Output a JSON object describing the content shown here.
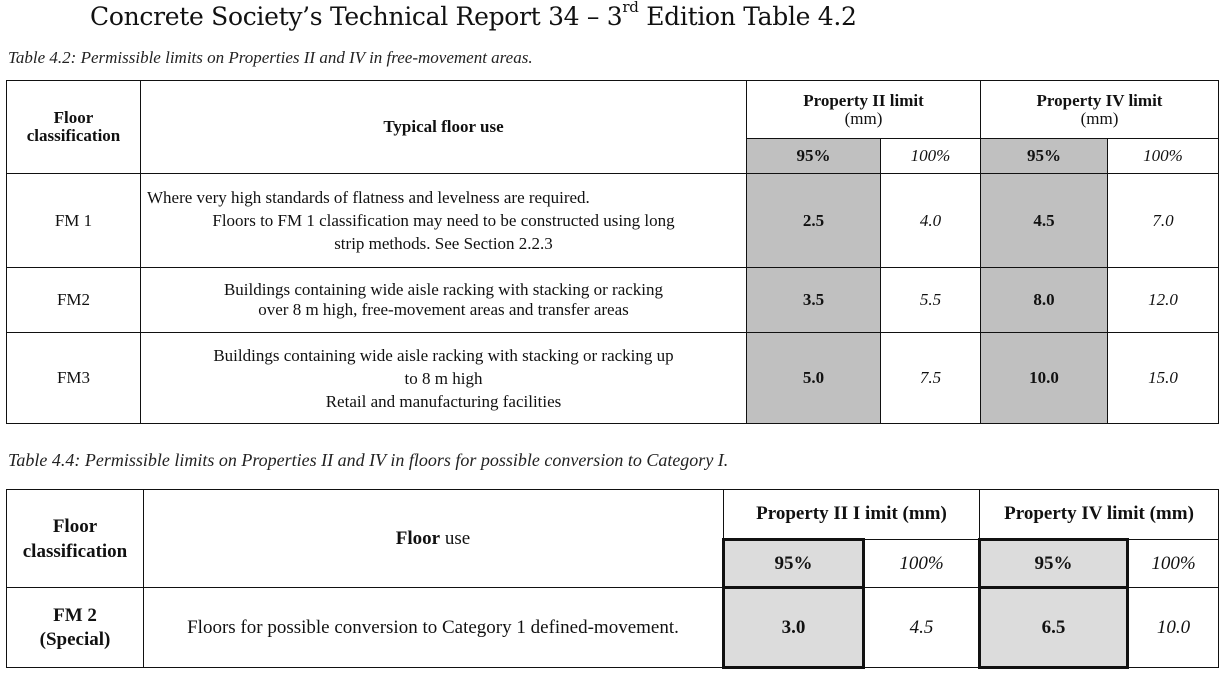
{
  "page_title": {
    "prefix": "Concrete Society’s Technical Report 34 – 3",
    "sup": "rd",
    "suffix": " Edition Table 4.2"
  },
  "table1": {
    "caption": "Table 4.2:  Permissible limits on Properties II and IV in free-movement areas.",
    "headers": {
      "floor_classification_1": "Floor",
      "floor_classification_2": "classification",
      "typical_floor_use": "Typical floor use",
      "prop2_line1": "Property II limit",
      "prop2_line2": "(mm)",
      "prop4_line1": "Property IV limit",
      "prop4_line2": "(mm)",
      "p95_a": "95%",
      "p100_a": "100%",
      "p95_b": "95%",
      "p100_b": "100%"
    },
    "rows": [
      {
        "class": "FM 1",
        "use_lines": [
          "Where very high standards of flatness and levelness are required.",
          "Floors to FM 1 classification may need to be constructed using long",
          "strip methods. See Section 2.2.3"
        ],
        "p2_95": "2.5",
        "p2_100": "4.0",
        "p4_95": "4.5",
        "p4_100": "7.0"
      },
      {
        "class": "FM2",
        "use_lines": [
          "Buildings containing wide aisle racking with stacking or racking",
          "over 8 m high, free-movement areas and transfer areas"
        ],
        "p2_95": "3.5",
        "p2_100": "5.5",
        "p4_95": "8.0",
        "p4_100": "12.0"
      },
      {
        "class": "FM3",
        "use_lines": [
          "Buildings containing wide aisle racking with stacking or racking up",
          "to 8 m high",
          "Retail and manufacturing facilities"
        ],
        "p2_95": "5.0",
        "p2_100": "7.5",
        "p4_95": "10.0",
        "p4_100": "15.0"
      }
    ]
  },
  "table2": {
    "caption": "Table 4.4:  Permissible limits on Properties II and IV in floors for possible conversion to Category I.",
    "headers": {
      "floor_classification_1": "Floor",
      "floor_classification_2": "classification",
      "floor_use_bold": "Floor",
      "floor_use_rest": " use",
      "prop2": "Property II I imit (mm)",
      "prop4": "Property IV limit (mm)",
      "p95_a": "95%",
      "p100_a": "100%",
      "p95_b": "95%",
      "p100_b": "100%"
    },
    "row": {
      "class_line1": "FM 2",
      "class_line2": "(Special)",
      "use": "Floors for possible conversion to Category 1 defined-movement.",
      "p2_95": "3.0",
      "p2_100": "4.5",
      "p4_95": "6.5",
      "p4_100": "10.0"
    }
  }
}
